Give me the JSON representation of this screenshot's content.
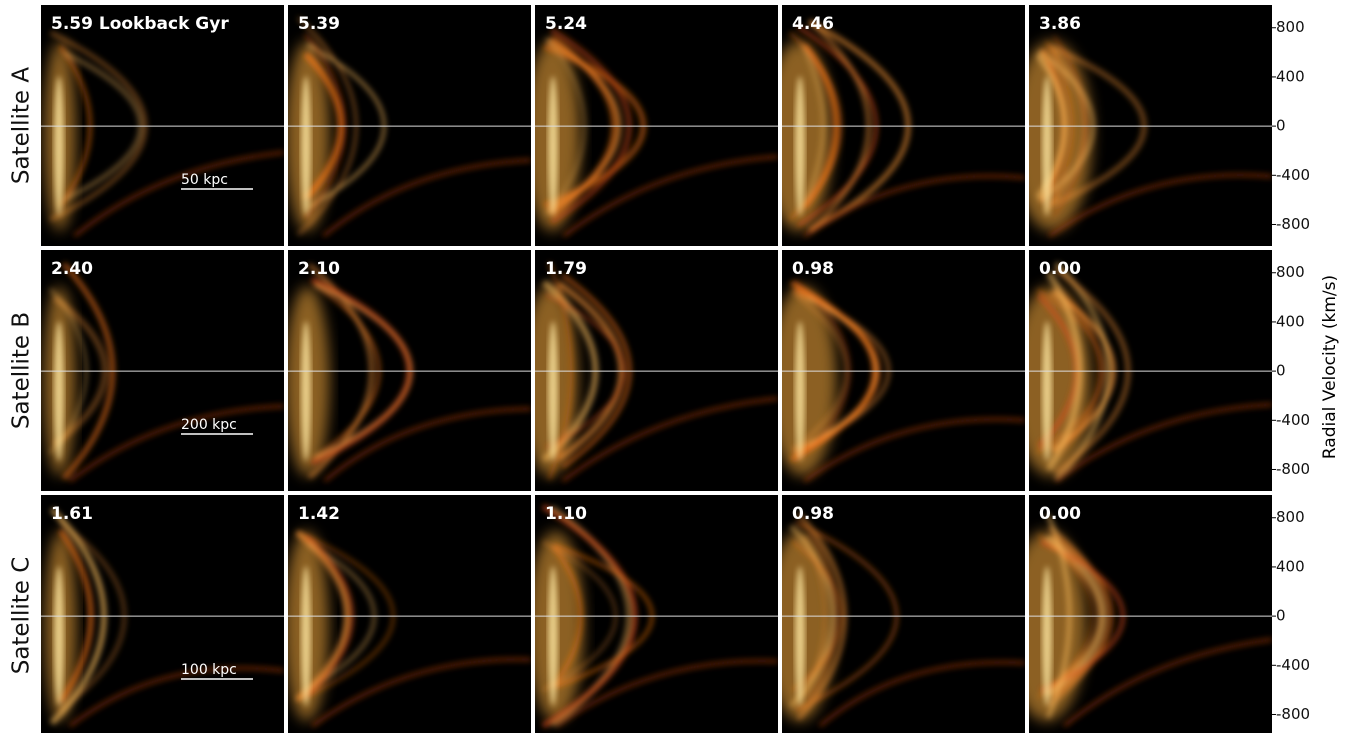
{
  "chart_data": {
    "type": "phase-space-grid",
    "y_label": "Radial Velocity (km/s)",
    "ylim": [
      -975,
      985
    ],
    "yticks": [
      800,
      400,
      0,
      -400,
      -800
    ],
    "rows": [
      {
        "label": "Satellite A",
        "scale_bar": "50 kpc",
        "panels": [
          "5.59 Lookback Gyr",
          "5.39",
          "5.24",
          "4.46",
          "3.86"
        ]
      },
      {
        "label": "Satellite B",
        "scale_bar": "200 kpc",
        "panels": [
          "2.40",
          "2.10",
          "1.79",
          "0.98",
          "0.00"
        ]
      },
      {
        "label": "Satellite C",
        "scale_bar": "100 kpc",
        "panels": [
          "1.61",
          "1.42",
          "1.10",
          "0.98",
          "0.00"
        ]
      }
    ]
  }
}
